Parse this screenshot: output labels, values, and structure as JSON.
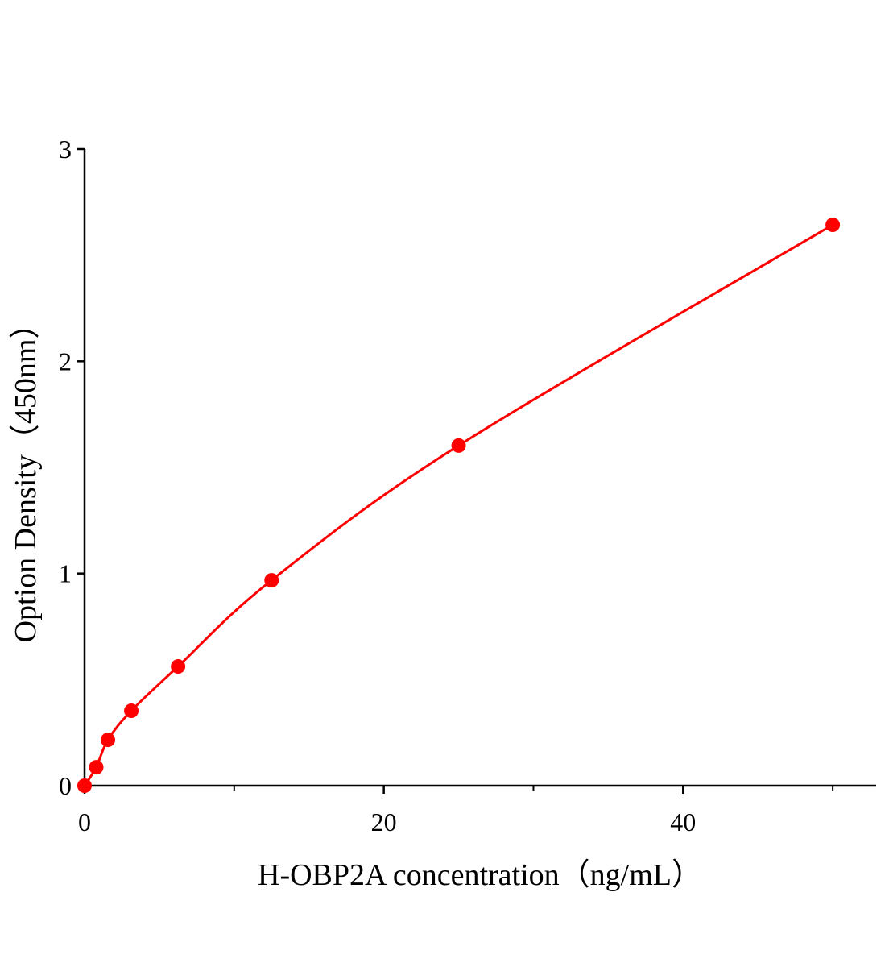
{
  "chart_data": {
    "type": "scatter",
    "title": "",
    "xlabel": "H-OBP2A concentration（ng/mL）",
    "ylabel": "Option Density（450nm）",
    "xlim": [
      0,
      52.9
    ],
    "ylim": [
      0,
      3
    ],
    "xticks": [
      0,
      20,
      40
    ],
    "xminor_ticks": [
      10,
      30,
      50
    ],
    "yticks": [
      0,
      1,
      2,
      3
    ],
    "grid": false,
    "series": [
      {
        "x": [
          0,
          0.78,
          1.56,
          3.125,
          6.25,
          12.5,
          25,
          50
        ],
        "y": [
          0,
          0.087,
          0.216,
          0.353,
          0.562,
          0.968,
          1.603,
          2.643
        ],
        "color": "#ff0000",
        "fit_line": true
      }
    ]
  }
}
